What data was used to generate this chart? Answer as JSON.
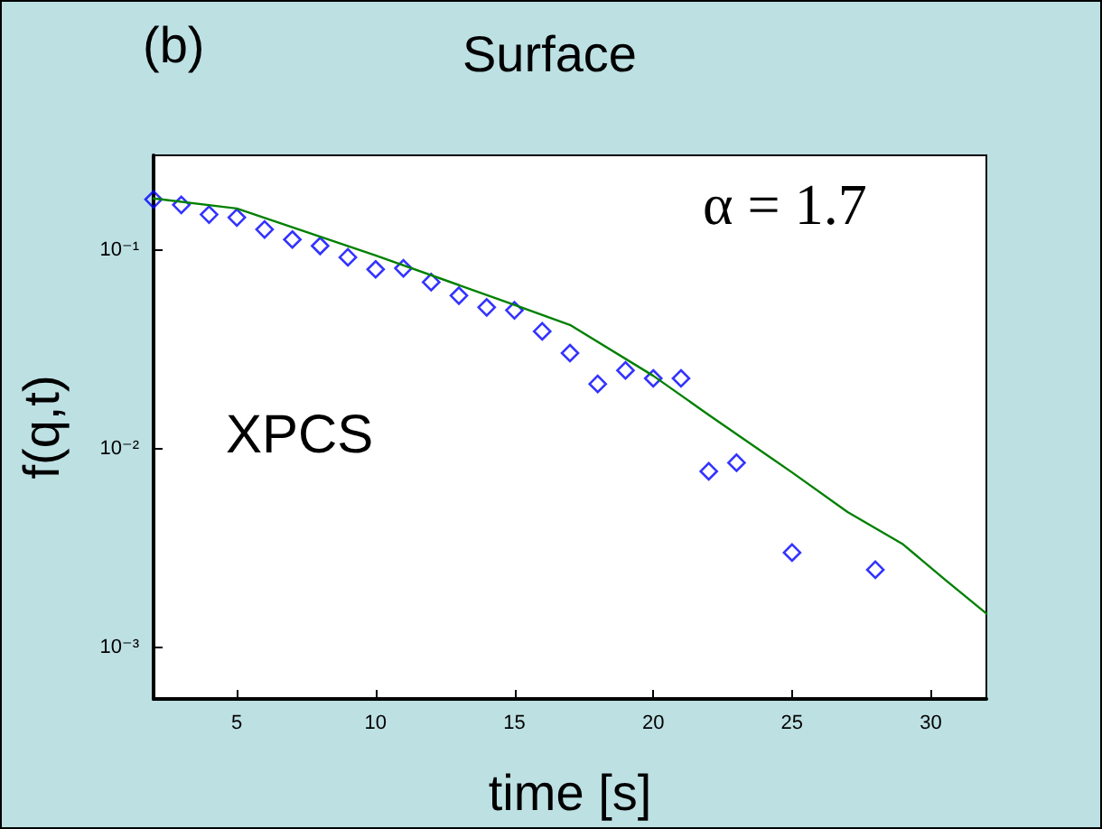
{
  "chart_data": {
    "type": "scatter",
    "title": "Surface",
    "xlabel": "time [s]",
    "ylabel": "f(q,t)",
    "annotations": [
      "(b)",
      "α = 1.7",
      "XPCS"
    ],
    "log": "y",
    "grid": false,
    "xlim": [
      2,
      32
    ],
    "xticks": [
      5,
      10,
      15,
      20,
      25,
      30
    ],
    "ylim": [
      0.00055,
      0.3
    ],
    "yticks": [
      {
        "value": 0.001,
        "label": "10⁻³"
      },
      {
        "value": 0.01,
        "label": "10⁻²"
      },
      {
        "value": 0.1,
        "label": "10⁻¹"
      }
    ],
    "series": [
      {
        "marker": "diamond",
        "color": "#0000ff",
        "x": [
          2,
          3,
          4,
          5,
          6,
          7,
          8,
          9,
          10,
          11,
          12,
          13,
          14,
          15,
          16,
          17,
          18,
          19,
          20,
          21,
          22,
          23,
          25,
          28
        ],
        "values": [
          0.18,
          0.169,
          0.151,
          0.146,
          0.127,
          0.113,
          0.105,
          0.092,
          0.08,
          0.081,
          0.069,
          0.059,
          0.0515,
          0.0498,
          0.039,
          0.0303,
          0.0212,
          0.0248,
          0.0226,
          0.0226,
          0.0077,
          0.0085,
          0.003,
          0.00246
        ]
      },
      {
        "type": "line",
        "marker": "none",
        "line_style": "solid",
        "color": "#008000",
        "x": [
          2,
          5,
          10,
          15,
          17,
          20,
          22,
          25,
          27,
          29,
          30.5,
          32
        ],
        "values": [
          0.182,
          0.162,
          0.094,
          0.053,
          0.042,
          0.0233,
          0.0148,
          0.0076,
          0.0048,
          0.0033,
          0.0022,
          0.00148
        ]
      }
    ]
  }
}
